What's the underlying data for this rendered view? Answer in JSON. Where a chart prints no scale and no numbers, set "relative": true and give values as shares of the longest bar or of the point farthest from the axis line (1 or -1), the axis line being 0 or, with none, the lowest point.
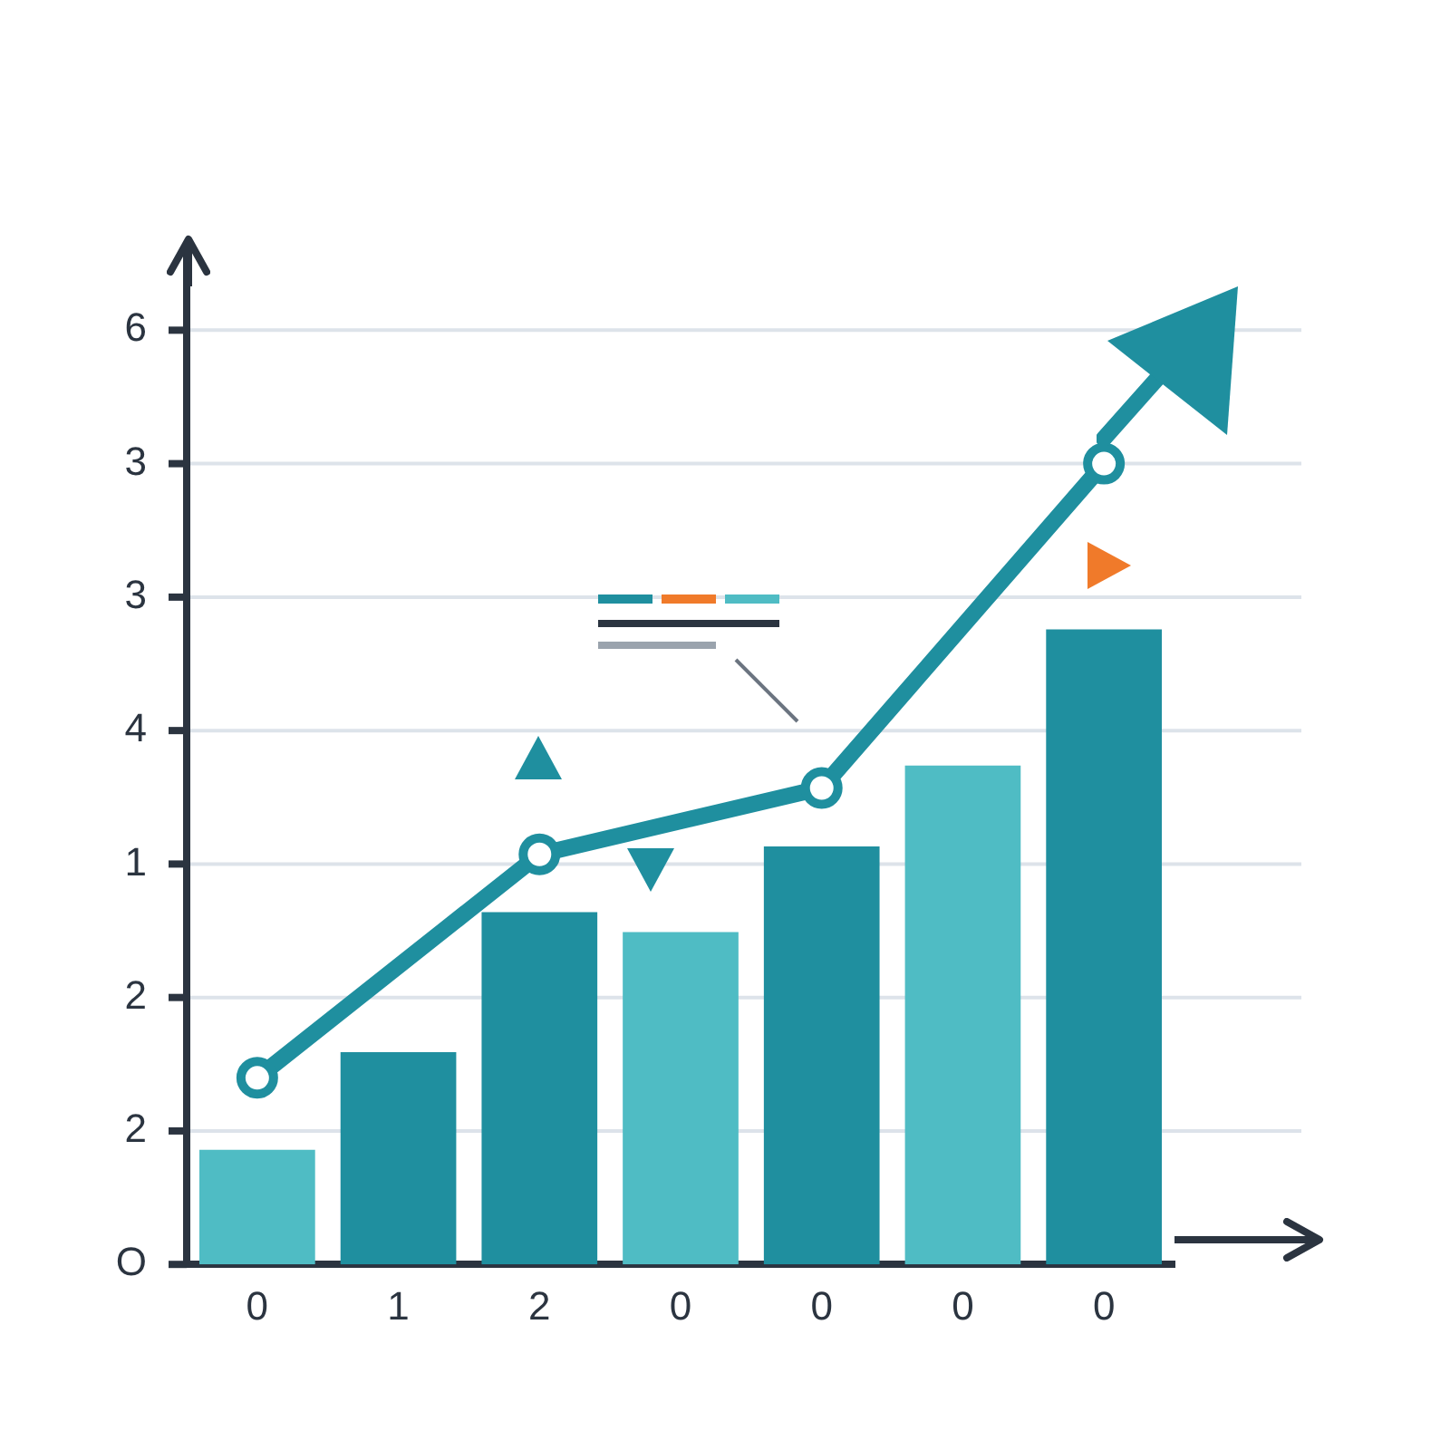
{
  "chart_data": {
    "type": "bar",
    "relative": true,
    "categories": [
      "0",
      "1",
      "2",
      "0",
      "0",
      "0",
      "0"
    ],
    "series": [
      {
        "colors": [
          "#4fbcc4",
          "#1f8f9f",
          "#1f8f9f",
          "#4fbcc4",
          "#1f8f9f",
          "#4fbcc4",
          "#1f8f9f"
        ],
        "values": [
          0.143,
          0.265,
          0.44,
          0.415,
          0.522,
          0.623,
          0.793
        ]
      },
      {
        "type": "line",
        "color": "#1f8f9f",
        "marker": "circle",
        "values": [
          0.233,
          null,
          0.512,
          null,
          0.595,
          null,
          1
        ]
      }
    ],
    "annotations": [
      "O",
      "2",
      "2",
      "1",
      "4",
      "3",
      "3",
      "6"
    ],
    "grid": "y"
  }
}
